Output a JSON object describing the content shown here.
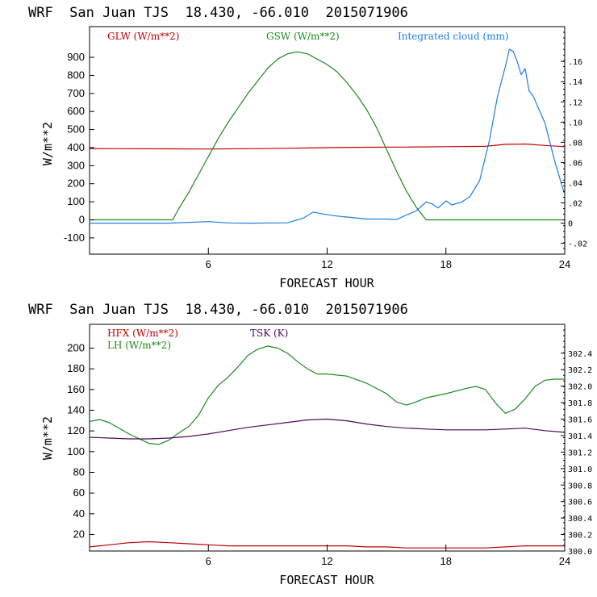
{
  "chart_data": [
    {
      "type": "line",
      "title": "WRF  San Juan TJS  18.430, -66.010  2015071906",
      "xlabel": "FORECAST HOUR",
      "ylabel": "W/m**2",
      "xlim": [
        0,
        24
      ],
      "ylim": [
        -190,
        1070
      ],
      "x_ticks": [
        6,
        12,
        18,
        24
      ],
      "y_ticks": [
        -100,
        0,
        100,
        200,
        300,
        400,
        500,
        600,
        700,
        800,
        900
      ],
      "y2lim": [
        -0.0307,
        0.1945
      ],
      "y2_ticks": [
        -0.02,
        0.0,
        0.02,
        0.04,
        0.06,
        0.08,
        0.1,
        0.12,
        0.14,
        0.16
      ],
      "y2_tick_labels": [
        "-.02",
        "0",
        ".02",
        ".04",
        ".06",
        ".08",
        ".10",
        ".12",
        ".14",
        ".16"
      ],
      "legend": [
        "GLW (W/m**2)",
        "GSW (W/m**2)",
        "Integrated cloud (mm)"
      ],
      "colors": {
        "glw": "#c00000",
        "gsw": "#1a8a1a",
        "cloud": "#1a7fe0"
      },
      "series": [
        {
          "name": "GLW (W/m**2)",
          "axis": "left",
          "x": [
            0,
            2,
            4,
            6,
            8,
            10,
            12,
            14,
            16,
            18,
            20,
            21,
            22,
            23,
            24
          ],
          "values": [
            395,
            394,
            393,
            392,
            394,
            396,
            400,
            402,
            403,
            405,
            407,
            418,
            420,
            412,
            405
          ]
        },
        {
          "name": "GSW (W/m**2)",
          "axis": "left",
          "x": [
            0,
            4.2,
            4.5,
            5,
            5.5,
            6,
            6.5,
            7,
            7.5,
            8,
            8.5,
            9,
            9.5,
            10,
            10.5,
            11,
            11.5,
            12,
            12.5,
            13,
            13.5,
            14,
            14.5,
            15,
            15.5,
            16,
            16.5,
            17,
            24
          ],
          "values": [
            0,
            0,
            60,
            150,
            250,
            350,
            450,
            540,
            620,
            700,
            770,
            840,
            890,
            920,
            930,
            920,
            890,
            860,
            820,
            760,
            690,
            610,
            510,
            390,
            270,
            160,
            70,
            0,
            0
          ]
        },
        {
          "name": "Integrated cloud (mm)",
          "axis": "right",
          "x": [
            0,
            2,
            4,
            6,
            7,
            8,
            10,
            10.8,
            11.3,
            11.8,
            12.5,
            13,
            14,
            15,
            15.5,
            16,
            16.5,
            17,
            17.3,
            17.6,
            18,
            18.3,
            18.8,
            19.2,
            19.7,
            20.2,
            20.6,
            21,
            21.2,
            21.4,
            21.6,
            21.8,
            22,
            22.2,
            22.4,
            22.6,
            23,
            23.5,
            24
          ],
          "values": [
            0.0,
            0.0,
            0.0,
            0.0015,
            0.0002,
            0.0,
            0.0003,
            0.005,
            0.011,
            0.009,
            0.007,
            0.006,
            0.004,
            0.004,
            0.0035,
            0.008,
            0.012,
            0.021,
            0.019,
            0.015,
            0.022,
            0.018,
            0.021,
            0.026,
            0.042,
            0.082,
            0.125,
            0.155,
            0.172,
            0.17,
            0.16,
            0.147,
            0.153,
            0.131,
            0.126,
            0.117,
            0.099,
            0.061,
            0.028
          ]
        }
      ]
    },
    {
      "type": "line",
      "title": "WRF  San Juan TJS  18.430, -66.010  2015071906",
      "xlabel": "FORECAST HOUR",
      "ylabel": "W/m**2",
      "xlim": [
        0,
        24
      ],
      "ylim": [
        4,
        223
      ],
      "x_ticks": [
        6,
        12,
        18,
        24
      ],
      "y_ticks": [
        20,
        40,
        60,
        80,
        100,
        120,
        140,
        160,
        180,
        200
      ],
      "y2lim": [
        300.0,
        302.75
      ],
      "y2_ticks": [
        300.0,
        300.2,
        300.4,
        300.6,
        300.8,
        301.0,
        301.2,
        301.4,
        301.6,
        301.8,
        302.0,
        302.2,
        302.4
      ],
      "y2_tick_labels": [
        "300.0",
        "300.2",
        "300.4",
        "300.6",
        "300.8",
        "301.0",
        "301.2",
        "301.4",
        "301.6",
        "301.8",
        "302.0",
        "302.2",
        "302.4"
      ],
      "legend": [
        "HFX (W/m**2)",
        "LH (W/m**2)",
        "TSK (K)"
      ],
      "colors": {
        "hfx": "#c00000",
        "lh": "#1a8a1a",
        "tsk": "#4a0a5a"
      },
      "series": [
        {
          "name": "HFX (W/m**2)",
          "axis": "left",
          "x": [
            0,
            1,
            2,
            3,
            4,
            5,
            6,
            7,
            8,
            9,
            10,
            11,
            12,
            13,
            14,
            15,
            16,
            17,
            18,
            19,
            20,
            21,
            22,
            23,
            24
          ],
          "values": [
            8,
            10,
            12,
            13,
            12,
            11,
            10,
            9,
            9,
            9,
            9,
            9,
            9,
            9,
            8,
            8,
            7,
            7,
            7,
            7,
            7,
            8,
            9,
            9,
            9
          ]
        },
        {
          "name": "LH (W/m**2)",
          "axis": "left",
          "x": [
            0,
            0.5,
            1,
            2,
            3,
            3.5,
            4,
            4.5,
            5,
            5.5,
            6,
            6.5,
            7,
            7.5,
            8,
            8.5,
            9,
            9.5,
            10,
            10.5,
            11,
            11.5,
            12,
            13,
            14,
            15,
            15.5,
            16,
            16.5,
            17,
            18,
            19,
            19.5,
            20,
            20.5,
            21,
            21.5,
            22,
            22.5,
            23,
            23.5,
            24
          ],
          "values": [
            129,
            131,
            128,
            117,
            108,
            107,
            111,
            118,
            124,
            135,
            152,
            164,
            172,
            182,
            193,
            199,
            202,
            200,
            195,
            187,
            180,
            175,
            175,
            173,
            166,
            156,
            148,
            145,
            148,
            152,
            156,
            161,
            163,
            160,
            147,
            137,
            141,
            151,
            163,
            169,
            170,
            170
          ]
        },
        {
          "name": "TSK (K)",
          "axis": "right",
          "x": [
            0,
            1,
            2,
            3,
            4,
            5,
            6,
            7,
            8,
            9,
            10,
            11,
            12,
            13,
            14,
            15,
            16,
            17,
            18,
            19,
            20,
            21,
            22,
            23,
            24
          ],
          "values": [
            301.38,
            301.37,
            301.36,
            301.36,
            301.37,
            301.39,
            301.42,
            301.46,
            301.5,
            301.53,
            301.56,
            301.59,
            301.6,
            301.58,
            301.54,
            301.51,
            301.49,
            301.48,
            301.47,
            301.47,
            301.47,
            301.48,
            301.49,
            301.46,
            301.44
          ]
        }
      ]
    }
  ]
}
